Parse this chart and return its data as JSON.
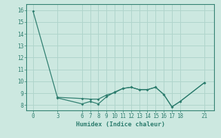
{
  "line1_x": [
    0,
    3,
    6,
    7,
    8,
    9,
    10,
    11,
    12,
    13,
    14,
    15,
    16,
    17,
    18,
    21
  ],
  "line1_y": [
    15.9,
    8.6,
    8.1,
    8.3,
    8.1,
    8.7,
    9.1,
    9.4,
    9.5,
    9.3,
    9.3,
    9.5,
    8.9,
    7.85,
    8.3,
    9.9
  ],
  "line2_x": [
    3,
    6,
    7,
    8,
    9,
    10,
    11,
    12,
    13,
    14,
    15,
    16,
    17,
    18,
    21
  ],
  "line2_y": [
    8.65,
    8.55,
    8.5,
    8.5,
    8.85,
    9.05,
    9.4,
    9.5,
    9.3,
    9.3,
    9.5,
    8.9,
    7.85,
    8.3,
    9.9
  ],
  "xticks": [
    0,
    3,
    6,
    7,
    8,
    9,
    10,
    11,
    12,
    13,
    14,
    15,
    16,
    17,
    18,
    21
  ],
  "yticks": [
    8,
    9,
    10,
    11,
    12,
    13,
    14,
    15,
    16
  ],
  "ylim": [
    7.55,
    16.5
  ],
  "xlim": [
    -0.8,
    22.2
  ],
  "xlabel": "Humidex (Indice chaleur)",
  "line_color": "#2d7d6e",
  "bg_color": "#cce8e0",
  "grid_color": "#afd4cb",
  "spine_color": "#2d7d6e",
  "tick_fontsize": 5.5,
  "xlabel_fontsize": 6.5
}
